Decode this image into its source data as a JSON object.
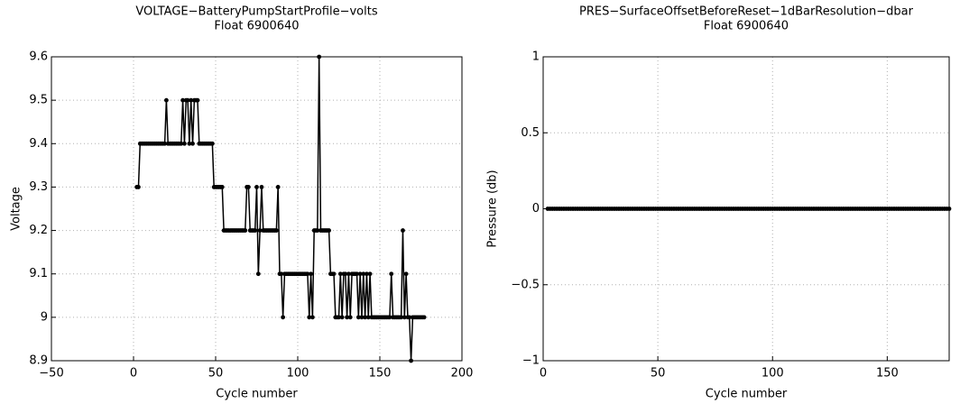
{
  "chart_data": [
    {
      "type": "line",
      "title": "VOLTAGE−BatteryPumpStartProfile−volts",
      "subtitle": "Float 6900640",
      "xlabel": "Cycle number",
      "ylabel": "Voltage",
      "color": "#000000",
      "grid": true,
      "xlim": [
        -50,
        200
      ],
      "xticks": [
        {
          "value": -50,
          "label": "−50"
        },
        0,
        50,
        100,
        150,
        200
      ],
      "ylim": [
        8.9,
        9.6
      ],
      "yticks": [
        8.9,
        9,
        9.1,
        9.2,
        9.3,
        9.4,
        9.5,
        9.6
      ],
      "x": [
        2,
        3,
        4,
        5,
        6,
        7,
        8,
        9,
        10,
        11,
        12,
        13,
        14,
        15,
        16,
        17,
        18,
        19,
        20,
        21,
        22,
        23,
        24,
        25,
        26,
        27,
        28,
        29,
        30,
        31,
        32,
        33,
        34,
        35,
        36,
        37,
        38,
        39,
        40,
        41,
        42,
        43,
        44,
        45,
        46,
        47,
        48,
        49,
        50,
        51,
        52,
        53,
        54,
        55,
        56,
        57,
        58,
        59,
        60,
        61,
        62,
        63,
        64,
        65,
        66,
        67,
        68,
        69,
        70,
        71,
        72,
        73,
        74,
        75,
        76,
        77,
        78,
        79,
        80,
        81,
        82,
        83,
        84,
        85,
        86,
        87,
        88,
        89,
        90,
        91,
        92,
        93,
        94,
        95,
        96,
        97,
        98,
        99,
        100,
        101,
        102,
        103,
        104,
        105,
        106,
        107,
        108,
        109,
        110,
        111,
        112,
        113,
        114,
        115,
        116,
        117,
        118,
        119,
        120,
        121,
        122,
        123,
        124,
        125,
        126,
        127,
        128,
        129,
        130,
        131,
        132,
        133,
        134,
        135,
        136,
        137,
        138,
        139,
        140,
        141,
        142,
        143,
        144,
        145,
        146,
        147,
        148,
        149,
        150,
        151,
        152,
        153,
        154,
        155,
        156,
        157,
        158,
        159,
        160,
        161,
        162,
        163,
        164,
        165,
        166,
        167,
        168,
        169,
        170,
        171,
        172,
        173,
        174,
        175,
        176,
        177
      ],
      "values": [
        9.3,
        9.3,
        9.4,
        9.4,
        9.4,
        9.4,
        9.4,
        9.4,
        9.4,
        9.4,
        9.4,
        9.4,
        9.4,
        9.4,
        9.4,
        9.4,
        9.4,
        9.4,
        9.5,
        9.4,
        9.4,
        9.4,
        9.4,
        9.4,
        9.4,
        9.4,
        9.4,
        9.4,
        9.5,
        9.4,
        9.5,
        9.5,
        9.4,
        9.5,
        9.4,
        9.5,
        9.5,
        9.5,
        9.4,
        9.4,
        9.4,
        9.4,
        9.4,
        9.4,
        9.4,
        9.4,
        9.4,
        9.3,
        9.3,
        9.3,
        9.3,
        9.3,
        9.3,
        9.2,
        9.2,
        9.2,
        9.2,
        9.2,
        9.2,
        9.2,
        9.2,
        9.2,
        9.2,
        9.2,
        9.2,
        9.2,
        9.2,
        9.3,
        9.3,
        9.2,
        9.2,
        9.2,
        9.2,
        9.3,
        9.1,
        9.2,
        9.3,
        9.2,
        9.2,
        9.2,
        9.2,
        9.2,
        9.2,
        9.2,
        9.2,
        9.2,
        9.3,
        9.1,
        9.1,
        9.0,
        9.1,
        9.1,
        9.1,
        9.1,
        9.1,
        9.1,
        9.1,
        9.1,
        9.1,
        9.1,
        9.1,
        9.1,
        9.1,
        9.1,
        9.1,
        9.0,
        9.1,
        9.0,
        9.2,
        9.2,
        9.2,
        9.6,
        9.2,
        9.2,
        9.2,
        9.2,
        9.2,
        9.2,
        9.1,
        9.1,
        9.1,
        9.0,
        9.0,
        9.0,
        9.1,
        9.0,
        9.1,
        9.1,
        9.0,
        9.1,
        9.0,
        9.1,
        9.1,
        9.1,
        9.1,
        9.0,
        9.1,
        9.0,
        9.1,
        9.0,
        9.1,
        9.0,
        9.1,
        9.0,
        9.0,
        9.0,
        9.0,
        9.0,
        9.0,
        9.0,
        9.0,
        9.0,
        9.0,
        9.0,
        9.0,
        9.1,
        9.0,
        9.0,
        9.0,
        9.0,
        9.0,
        9.0,
        9.2,
        9.0,
        9.1,
        9.0,
        9.0,
        8.9,
        9.0,
        9.0,
        9.0,
        9.0,
        9.0,
        9.0,
        9.0,
        9.0
      ]
    },
    {
      "type": "line",
      "title": "PRES−SurfaceOffsetBeforeReset−1dBarResolution−dbar",
      "subtitle": "Float 6900640",
      "xlabel": "Cycle number",
      "ylabel": "Pressure (db)",
      "color": "#000000",
      "grid": true,
      "xlim": [
        0,
        177
      ],
      "xticks": [
        0,
        50,
        100,
        150
      ],
      "ylim": [
        -1,
        1
      ],
      "yticks": [
        {
          "value": -1,
          "label": "−1"
        },
        {
          "value": -0.5,
          "label": "−0.5"
        },
        0,
        0.5,
        1
      ],
      "x": [
        2,
        3,
        4,
        5,
        6,
        7,
        8,
        9,
        10,
        11,
        12,
        13,
        14,
        15,
        16,
        17,
        18,
        19,
        20,
        21,
        22,
        23,
        24,
        25,
        26,
        27,
        28,
        29,
        30,
        31,
        32,
        33,
        34,
        35,
        36,
        37,
        38,
        39,
        40,
        41,
        42,
        43,
        44,
        45,
        46,
        47,
        48,
        49,
        50,
        51,
        52,
        53,
        54,
        55,
        56,
        57,
        58,
        59,
        60,
        61,
        62,
        63,
        64,
        65,
        66,
        67,
        68,
        69,
        70,
        71,
        72,
        73,
        74,
        75,
        76,
        77,
        78,
        79,
        80,
        81,
        82,
        83,
        84,
        85,
        86,
        87,
        88,
        89,
        90,
        91,
        92,
        93,
        94,
        95,
        96,
        97,
        98,
        99,
        100,
        101,
        102,
        103,
        104,
        105,
        106,
        107,
        108,
        109,
        110,
        111,
        112,
        113,
        114,
        115,
        116,
        117,
        118,
        119,
        120,
        121,
        122,
        123,
        124,
        125,
        126,
        127,
        128,
        129,
        130,
        131,
        132,
        133,
        134,
        135,
        136,
        137,
        138,
        139,
        140,
        141,
        142,
        143,
        144,
        145,
        146,
        147,
        148,
        149,
        150,
        151,
        152,
        153,
        154,
        155,
        156,
        157,
        158,
        159,
        160,
        161,
        162,
        163,
        164,
        165,
        166,
        167,
        168,
        169,
        170,
        171,
        172,
        173,
        174,
        175,
        176,
        177
      ],
      "values": [
        0,
        0,
        0,
        0,
        0,
        0,
        0,
        0,
        0,
        0,
        0,
        0,
        0,
        0,
        0,
        0,
        0,
        0,
        0,
        0,
        0,
        0,
        0,
        0,
        0,
        0,
        0,
        0,
        0,
        0,
        0,
        0,
        0,
        0,
        0,
        0,
        0,
        0,
        0,
        0,
        0,
        0,
        0,
        0,
        0,
        0,
        0,
        0,
        0,
        0,
        0,
        0,
        0,
        0,
        0,
        0,
        0,
        0,
        0,
        0,
        0,
        0,
        0,
        0,
        0,
        0,
        0,
        0,
        0,
        0,
        0,
        0,
        0,
        0,
        0,
        0,
        0,
        0,
        0,
        0,
        0,
        0,
        0,
        0,
        0,
        0,
        0,
        0,
        0,
        0,
        0,
        0,
        0,
        0,
        0,
        0,
        0,
        0,
        0,
        0,
        0,
        0,
        0,
        0,
        0,
        0,
        0,
        0,
        0,
        0,
        0,
        0,
        0,
        0,
        0,
        0,
        0,
        0,
        0,
        0,
        0,
        0,
        0,
        0,
        0,
        0,
        0,
        0,
        0,
        0,
        0,
        0,
        0,
        0,
        0,
        0,
        0,
        0,
        0,
        0,
        0,
        0,
        0,
        0,
        0,
        0,
        0,
        0,
        0,
        0,
        0,
        0,
        0,
        0,
        0,
        0,
        0,
        0,
        0,
        0,
        0,
        0,
        0,
        0,
        0,
        0,
        0,
        0,
        0,
        0,
        0,
        0,
        0,
        0,
        0,
        0
      ]
    }
  ]
}
